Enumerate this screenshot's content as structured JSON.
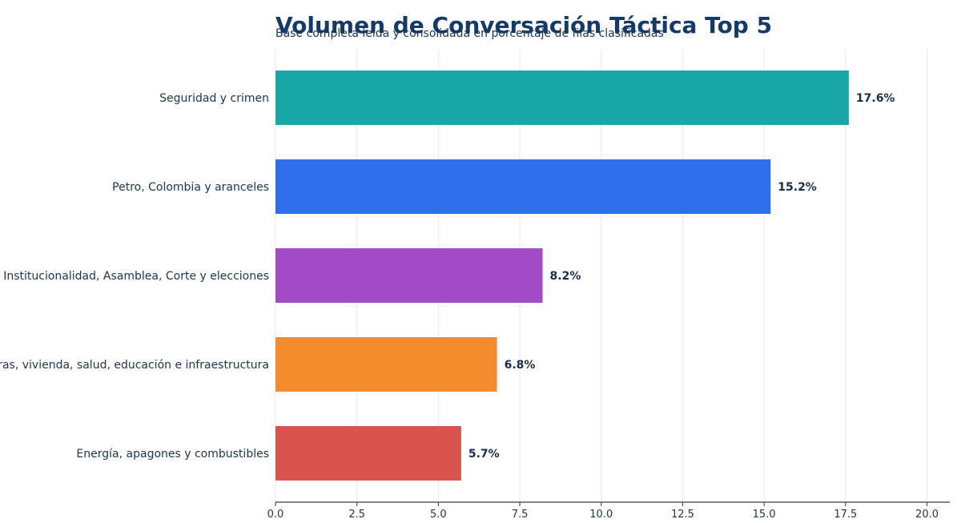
{
  "chart_data": {
    "type": "bar",
    "orientation": "horizontal",
    "title": "Volumen de Conversación Táctica Top 5",
    "subtitle": "Base completa leída y consolidada en porcentaje de filas clasificadas",
    "xlabel": "",
    "ylabel": "",
    "categories": [
      "Seguridad y crimen",
      "Petro, Colombia y aranceles",
      "Institucionalidad, Asamblea, Corte y elecciones",
      "Obras, vivienda, salud, educación e infraestructura",
      "Energía, apagones y combustibles"
    ],
    "values": [
      17.6,
      15.2,
      8.2,
      6.8,
      5.7
    ],
    "data_labels": [
      "17.6%",
      "15.2%",
      "8.2%",
      "6.8%",
      "5.7%"
    ],
    "colors": [
      "#19a7a8",
      "#2f6fec",
      "#a34ac7",
      "#f28c2c",
      "#d9534f"
    ],
    "xlim": [
      0,
      20.7
    ],
    "x_ticks": [
      0,
      2.5,
      5,
      7.5,
      10,
      12.5,
      15,
      17.5,
      20
    ],
    "x_tick_labels": [
      "0.0",
      "2.5",
      "5.0",
      "7.5",
      "10.0",
      "12.5",
      "15.0",
      "17.5",
      "20.0"
    ],
    "grid": "vertical",
    "legend": "none"
  }
}
